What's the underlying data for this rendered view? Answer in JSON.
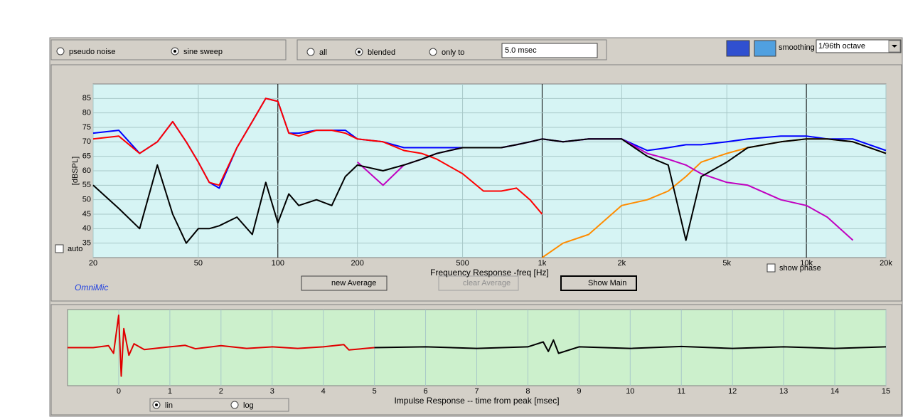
{
  "controls": {
    "source": [
      {
        "label": "pseudo noise",
        "checked": false
      },
      {
        "label": "sine sweep",
        "checked": true
      }
    ],
    "window": [
      {
        "label": "all",
        "checked": false
      },
      {
        "label": "blended",
        "checked": true
      },
      {
        "label": "only to",
        "checked": false
      }
    ],
    "window_time": "5.0 msec",
    "smoothing_label": "smoothing",
    "smoothing": "1/96th octave",
    "auto": "auto",
    "brand": "OmniMic",
    "buttons": [
      "new Average",
      "clear Average",
      "Show Main"
    ],
    "show_phase": "show phase",
    "scale": [
      {
        "label": "lin",
        "checked": true
      },
      {
        "label": "log",
        "checked": false
      }
    ]
  },
  "chart_data": [
    {
      "type": "line",
      "x_label": "Frequency Response -freq [Hz]",
      "y_label": "[dBSPL]",
      "xscale": "log",
      "xlim": [
        20,
        20000
      ],
      "ylim": [
        30,
        90
      ],
      "xticks": [
        20,
        50,
        100,
        200,
        500,
        {
          "value": 1000,
          "label": "1k"
        },
        {
          "value": 2000,
          "label": "2k"
        },
        {
          "value": 5000,
          "label": "5k"
        },
        {
          "value": 10000,
          "label": "10k"
        },
        {
          "value": 20000,
          "label": "20k"
        }
      ],
      "yticks": [
        35,
        40,
        45,
        50,
        55,
        60,
        65,
        70,
        75,
        80,
        85
      ],
      "grid": true,
      "background": "#d6f4f4",
      "x": [
        20,
        25,
        30,
        35,
        40,
        45,
        50,
        55,
        60,
        70,
        80,
        90,
        100,
        110,
        120,
        140,
        160,
        180,
        200,
        250,
        300,
        350,
        400,
        500,
        600,
        700,
        800,
        900,
        1000,
        1200,
        1500,
        2000,
        2500,
        3000,
        3500,
        4000,
        5000,
        6000,
        8000,
        10000,
        12000,
        15000,
        20000
      ],
      "series": [
        {
          "color": "#0000ff",
          "values": [
            73,
            74,
            66,
            70,
            77,
            70,
            63,
            56,
            54,
            68,
            77,
            85,
            84,
            73,
            73,
            74,
            74,
            74,
            71,
            70,
            68,
            68,
            68,
            68,
            68,
            68,
            69,
            70,
            71,
            70,
            71,
            71,
            67,
            68,
            69,
            69,
            70,
            71,
            72,
            72,
            71,
            71,
            67
          ]
        },
        {
          "color": "#ff0000",
          "values": [
            71,
            72,
            66,
            70,
            77,
            70,
            63,
            56,
            55,
            68,
            77,
            85,
            84,
            73,
            72,
            74,
            74,
            73,
            71,
            70,
            67,
            66,
            64,
            59,
            53,
            53,
            54,
            50,
            45,
            null,
            null,
            null,
            null,
            null,
            null,
            null,
            null,
            null,
            null,
            null,
            null,
            null,
            null
          ]
        },
        {
          "color": "#ff8c00",
          "values": [
            null,
            null,
            null,
            null,
            null,
            null,
            null,
            null,
            null,
            null,
            null,
            null,
            null,
            null,
            null,
            null,
            null,
            null,
            null,
            null,
            null,
            null,
            null,
            null,
            null,
            null,
            null,
            null,
            30,
            35,
            38,
            48,
            50,
            53,
            58,
            63,
            66,
            68,
            70,
            71,
            71,
            70,
            66
          ]
        },
        {
          "color": "#c000c0",
          "values": [
            null,
            null,
            null,
            null,
            null,
            null,
            null,
            null,
            null,
            null,
            null,
            null,
            null,
            null,
            null,
            null,
            null,
            null,
            63,
            55,
            62,
            64,
            66,
            68,
            68,
            68,
            69,
            70,
            71,
            70,
            71,
            71,
            66,
            64,
            62,
            59,
            56,
            55,
            50,
            48,
            44,
            36,
            null
          ]
        },
        {
          "color": "#000000",
          "values": [
            55,
            47,
            40,
            62,
            45,
            35,
            40,
            40,
            41,
            44,
            38,
            56,
            42,
            52,
            48,
            50,
            48,
            58,
            62,
            60,
            62,
            64,
            66,
            68,
            68,
            68,
            69,
            70,
            71,
            70,
            71,
            71,
            65,
            62,
            36,
            58,
            63,
            68,
            70,
            71,
            71,
            70,
            66
          ]
        }
      ]
    },
    {
      "type": "line",
      "x_label": "Impulse Response  -- time from peak [msec]",
      "xlim": [
        -1,
        15
      ],
      "ylim": [
        -1,
        1
      ],
      "xticks": [
        0,
        1,
        2,
        3,
        4,
        5,
        6,
        7,
        8,
        9,
        10,
        11,
        12,
        13,
        14,
        15
      ],
      "grid": true,
      "background": "#ccf0cc",
      "series": [
        {
          "color": "#e00000",
          "x": [
            -1,
            -0.5,
            -0.2,
            -0.1,
            0,
            0.05,
            0.1,
            0.2,
            0.3,
            0.5,
            1,
            1.3,
            1.5,
            2,
            2.5,
            3,
            3.5,
            4,
            4.4,
            4.5,
            5
          ],
          "values": [
            0,
            0,
            0.05,
            -0.15,
            0.85,
            -0.75,
            0.5,
            -0.2,
            0.1,
            -0.05,
            0.02,
            0.06,
            -0.03,
            0.05,
            -0.02,
            0.02,
            -0.02,
            0.02,
            0.08,
            -0.06,
            0
          ]
        },
        {
          "color": "#000000",
          "x": [
            5,
            6,
            7,
            8,
            8.3,
            8.4,
            8.5,
            8.6,
            9,
            10,
            11,
            12,
            13,
            14,
            15
          ],
          "values": [
            0,
            0.02,
            -0.02,
            0.02,
            0.15,
            -0.1,
            0.2,
            -0.15,
            0.02,
            -0.02,
            0.03,
            -0.02,
            0.02,
            -0.02,
            0.02
          ]
        }
      ]
    }
  ]
}
